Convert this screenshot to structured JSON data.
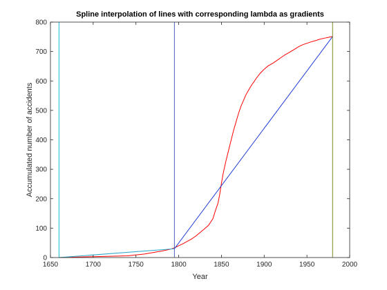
{
  "chart_data": {
    "type": "line",
    "title": "Spline interpolation of lines with corresponding lambda as gradients",
    "xlabel": "Year",
    "ylabel": "Accumulated number of accidents",
    "xlim": [
      1650,
      2000
    ],
    "ylim": [
      0,
      800
    ],
    "xticks": [
      1650,
      1700,
      1750,
      1800,
      1850,
      1900,
      1950,
      2000
    ],
    "yticks": [
      0,
      100,
      200,
      300,
      400,
      500,
      600,
      700,
      800
    ],
    "grid": false,
    "series": [
      {
        "color": "#ff0000",
        "x": [
          1660,
          1700,
          1740,
          1760,
          1780,
          1790,
          1795,
          1800,
          1805,
          1810,
          1815,
          1820,
          1825,
          1830,
          1835,
          1840,
          1843,
          1846,
          1848,
          1850,
          1852,
          1855,
          1858,
          1861,
          1864,
          1867,
          1870,
          1873,
          1876,
          1879,
          1882,
          1885,
          1888,
          1891,
          1895,
          1900,
          1905,
          1910,
          1915,
          1920,
          1925,
          1930,
          1935,
          1940,
          1945,
          1950,
          1955,
          1960,
          1965,
          1970,
          1975,
          1980
        ],
        "y": [
          0,
          3,
          6,
          12,
          22,
          28,
          33,
          40,
          47,
          55,
          63,
          73,
          85,
          97,
          110,
          132,
          160,
          185,
          215,
          252,
          285,
          325,
          360,
          395,
          430,
          460,
          490,
          515,
          535,
          555,
          570,
          585,
          597,
          610,
          625,
          640,
          652,
          660,
          670,
          680,
          690,
          698,
          707,
          716,
          723,
          728,
          733,
          737,
          742,
          745,
          748,
          751
        ]
      },
      {
        "color": "#1f3bd6",
        "x": [
          1795,
          1980
        ],
        "y": [
          30,
          751
        ]
      },
      {
        "color": "#2aa7c9",
        "x": [
          1660,
          1795
        ],
        "y": [
          0,
          30
        ]
      }
    ],
    "vlines": [
      {
        "x": 1660,
        "color": "#17becf"
      },
      {
        "x": 1795,
        "color": "#4a5fc0"
      },
      {
        "x": 1980,
        "color": "#7a8a20"
      }
    ]
  }
}
